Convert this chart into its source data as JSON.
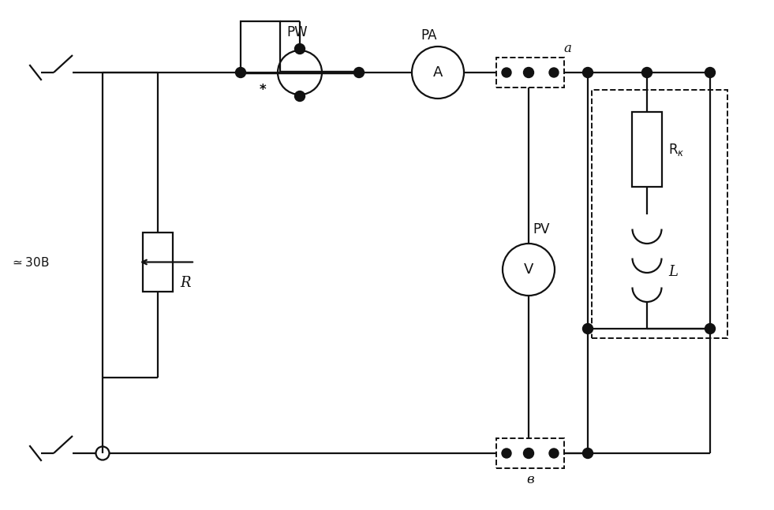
{
  "bg_color": "#ffffff",
  "lc": "#111111",
  "lw": 1.6,
  "dlw": 1.4,
  "figsize": [
    9.81,
    6.47
  ],
  "dpi": 100,
  "xlim": [
    0,
    9.81
  ],
  "ylim": [
    0,
    6.47
  ]
}
